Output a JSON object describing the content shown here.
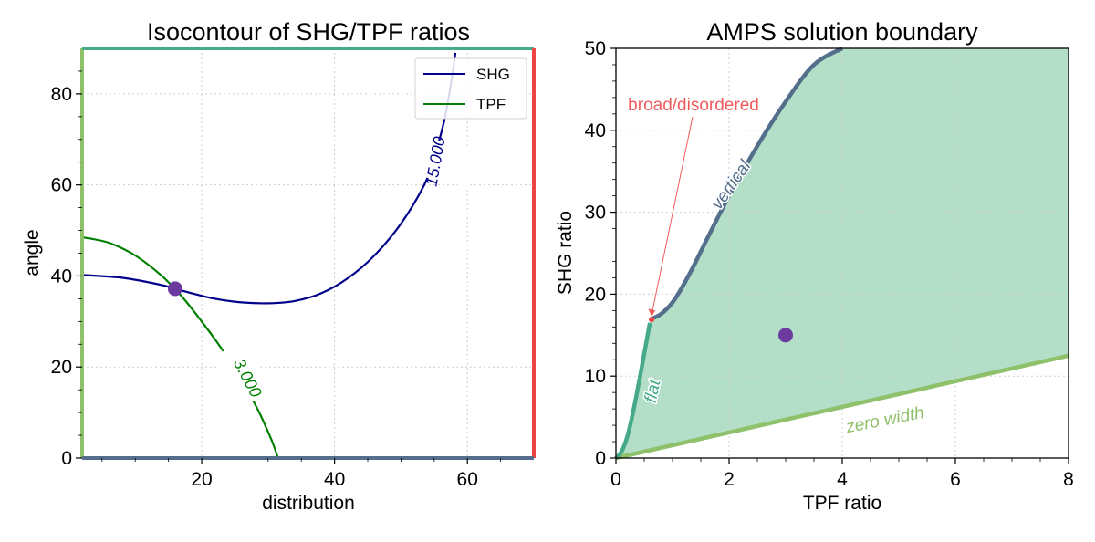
{
  "colors": {
    "shg": "#00008b",
    "tpf": "#008000",
    "point": "#6b3a9e",
    "spine_left": "#8fc06a",
    "spine_top": "#45a98a",
    "spine_right": "#ef4444",
    "spine_bottom": "#546f8c",
    "region_fill": "#b3dfc8",
    "boundary_vertical": "#546f8c",
    "boundary_flat": "#45a98a",
    "boundary_zero": "#8fc06a",
    "broad_label": "#ef5b5b"
  },
  "chart_data": [
    {
      "type": "line",
      "title": "Isocontour of SHG/TPF ratios",
      "xlabel": "distribution",
      "ylabel": "angle",
      "xlim": [
        2,
        70
      ],
      "ylim": [
        0,
        90
      ],
      "xticks": [
        20,
        40,
        60
      ],
      "yticks": [
        0,
        20,
        40,
        60,
        80
      ],
      "grid": true,
      "legend": {
        "placement": "top-right",
        "entries": [
          "SHG",
          "TPF"
        ]
      },
      "series": [
        {
          "name": "SHG",
          "contour_level": "15.000",
          "x": [
            2,
            8,
            14,
            18,
            22,
            26,
            30,
            34,
            38,
            42,
            46,
            50,
            53.5,
            55,
            56.5,
            57.5,
            58.2
          ],
          "y": [
            40.2,
            39.6,
            38.0,
            36.4,
            35.0,
            34.2,
            34.0,
            34.5,
            36.2,
            39.5,
            44.5,
            51.5,
            60,
            66,
            74,
            82,
            89
          ]
        },
        {
          "name": "TPF",
          "contour_level": "3.000",
          "x": [
            2,
            6,
            10,
            14,
            17,
            20,
            23,
            26,
            28.5,
            30.5,
            31.5
          ],
          "y": [
            48.5,
            47.3,
            44.5,
            40.0,
            35.5,
            30.0,
            24.0,
            17.0,
            10.5,
            4.0,
            0
          ]
        }
      ],
      "marker": {
        "x": 16,
        "y": 37.2
      }
    },
    {
      "type": "area",
      "title": "AMPS solution boundary",
      "xlabel": "TPF ratio",
      "ylabel": "SHG ratio",
      "xlim": [
        0,
        8
      ],
      "ylim": [
        0,
        50
      ],
      "xticks": [
        0,
        2,
        4,
        6,
        8
      ],
      "yticks": [
        0,
        10,
        20,
        30,
        40,
        50
      ],
      "grid": true,
      "boundaries": [
        {
          "label": "flat",
          "x": [
            0,
            0.1,
            0.2,
            0.3,
            0.4,
            0.48,
            0.55,
            0.6
          ],
          "y": [
            0,
            0.8,
            2.6,
            5.5,
            9.0,
            12.0,
            14.6,
            16.5
          ]
        },
        {
          "label": "vertical",
          "x": [
            0.6,
            0.8,
            1.0,
            1.2,
            1.4,
            1.6,
            2.0,
            2.5,
            3.0,
            3.5,
            4.0
          ],
          "y": [
            16.9,
            17.6,
            19.0,
            21.2,
            23.8,
            26.6,
            32.0,
            38.1,
            43.5,
            48.0,
            50
          ]
        },
        {
          "label": "zero width",
          "x": [
            0,
            8
          ],
          "y": [
            0,
            12.5
          ]
        }
      ],
      "annotation": {
        "text": "broad/disordered",
        "x": 0.63,
        "y": 16.9
      },
      "marker": {
        "x": 3.0,
        "y": 15.0
      }
    }
  ]
}
